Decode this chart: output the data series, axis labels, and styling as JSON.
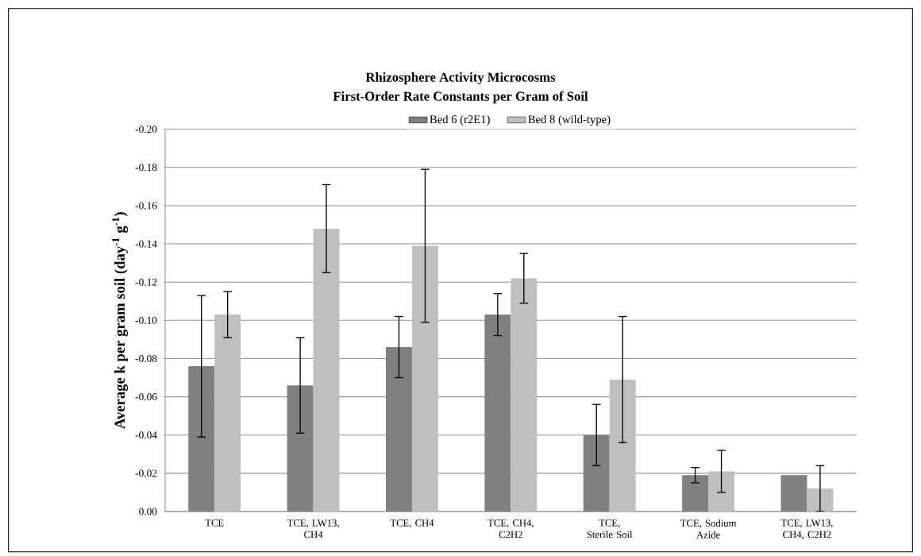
{
  "chart_data": {
    "type": "bar",
    "title": "Rhizosphere Activity Microcosms",
    "subtitle": "First-Order Rate Constants per Gram of Soil",
    "ylabel": "Average k per gram soil (day$^{-1}$ g$^{-1}$)",
    "categories": [
      "TCE",
      "TCE, LW13, CH4",
      "TCE, CH4",
      "TCE, CH4, C2H2",
      "TCE, Sterile Soil",
      "TCE, Sodium Azide",
      "TCE, LW13, CH4, C2H2"
    ],
    "series": [
      {
        "name": "Bed 6 (r2E1)",
        "color": "#808080",
        "values": [
          -0.076,
          -0.066,
          -0.086,
          -0.103,
          -0.04,
          -0.019,
          -0.019
        ],
        "errors": [
          0.037,
          0.025,
          0.016,
          0.011,
          0.016,
          0.004,
          null
        ]
      },
      {
        "name": "Bed 8 (wild-type)",
        "color": "#bfbfbf",
        "values": [
          -0.103,
          -0.148,
          -0.139,
          -0.122,
          -0.069,
          -0.021,
          -0.012
        ],
        "errors": [
          0.012,
          0.023,
          0.04,
          0.013,
          0.033,
          0.011,
          0.012
        ]
      }
    ],
    "ylim": [
      0,
      -0.2
    ],
    "yticks": [
      {
        "value": 0,
        "label": "0.00"
      },
      {
        "value": -0.02,
        "label": "-0.02"
      },
      {
        "value": -0.04,
        "label": "-0.04"
      },
      {
        "value": -0.06,
        "label": "-0.06"
      },
      {
        "value": -0.08,
        "label": "-0.08"
      },
      {
        "value": -0.1,
        "label": "-0.10"
      },
      {
        "value": -0.12,
        "label": "-0.12"
      },
      {
        "value": -0.14,
        "label": "-0.14"
      },
      {
        "value": -0.16,
        "label": "-0.16"
      },
      {
        "value": -0.18,
        "label": "-0.18"
      },
      {
        "value": -0.2,
        "label": "-0.20"
      }
    ],
    "grid": "y",
    "legend": "top"
  }
}
